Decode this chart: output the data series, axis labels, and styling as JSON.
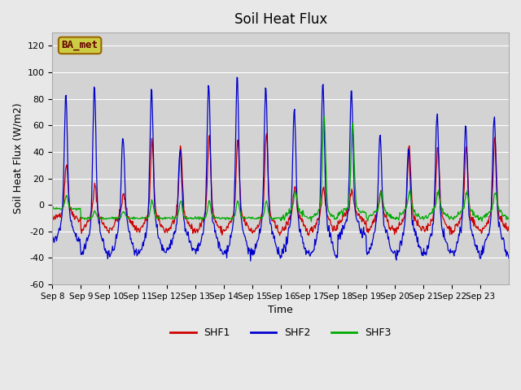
{
  "title": "Soil Heat Flux",
  "xlabel": "Time",
  "ylabel": "Soil Heat Flux (W/m2)",
  "ylim": [
    -60,
    130
  ],
  "yticks": [
    -60,
    -40,
    -20,
    0,
    20,
    40,
    60,
    80,
    100,
    120
  ],
  "date_labels": [
    "Sep 8",
    "Sep 9",
    "Sep 10",
    "Sep 11",
    "Sep 12",
    "Sep 13",
    "Sep 14",
    "Sep 15",
    "Sep 16",
    "Sep 17",
    "Sep 18",
    "Sep 19",
    "Sep 20",
    "Sep 21",
    "Sep 22",
    "Sep 23"
  ],
  "color_shf1": "#cc0000",
  "color_shf2": "#0000cc",
  "color_shf3": "#00aa00",
  "bg_color": "#e8e8e8",
  "plot_bg": "#d3d3d3",
  "label_box_text": "BA_met",
  "n_days": 16,
  "pts_per_day": 48,
  "shf2_peaks": [
    92,
    101,
    62,
    100,
    53,
    104,
    107,
    101,
    85,
    103,
    93,
    65,
    55,
    79,
    73,
    79
  ],
  "shf2_nights": [
    28,
    38,
    38,
    37,
    35,
    36,
    37,
    36,
    37,
    38,
    23,
    37,
    37,
    37,
    37,
    37
  ],
  "shf1_peaks": [
    35,
    20,
    13,
    54,
    50,
    60,
    54,
    60,
    20,
    20,
    15,
    15,
    50,
    50,
    50,
    57
  ],
  "shf1_nights": [
    11,
    19,
    18,
    19,
    19,
    20,
    19,
    20,
    20,
    20,
    12,
    19,
    19,
    19,
    19,
    19
  ],
  "shf3_peaks": [
    10,
    5,
    5,
    13,
    13,
    13,
    13,
    13,
    13,
    70,
    65,
    13,
    13,
    13,
    13,
    13
  ],
  "shf3_nights": [
    3,
    10,
    10,
    10,
    10,
    10,
    10,
    10,
    10,
    10,
    6,
    10,
    10,
    10,
    10,
    10
  ]
}
